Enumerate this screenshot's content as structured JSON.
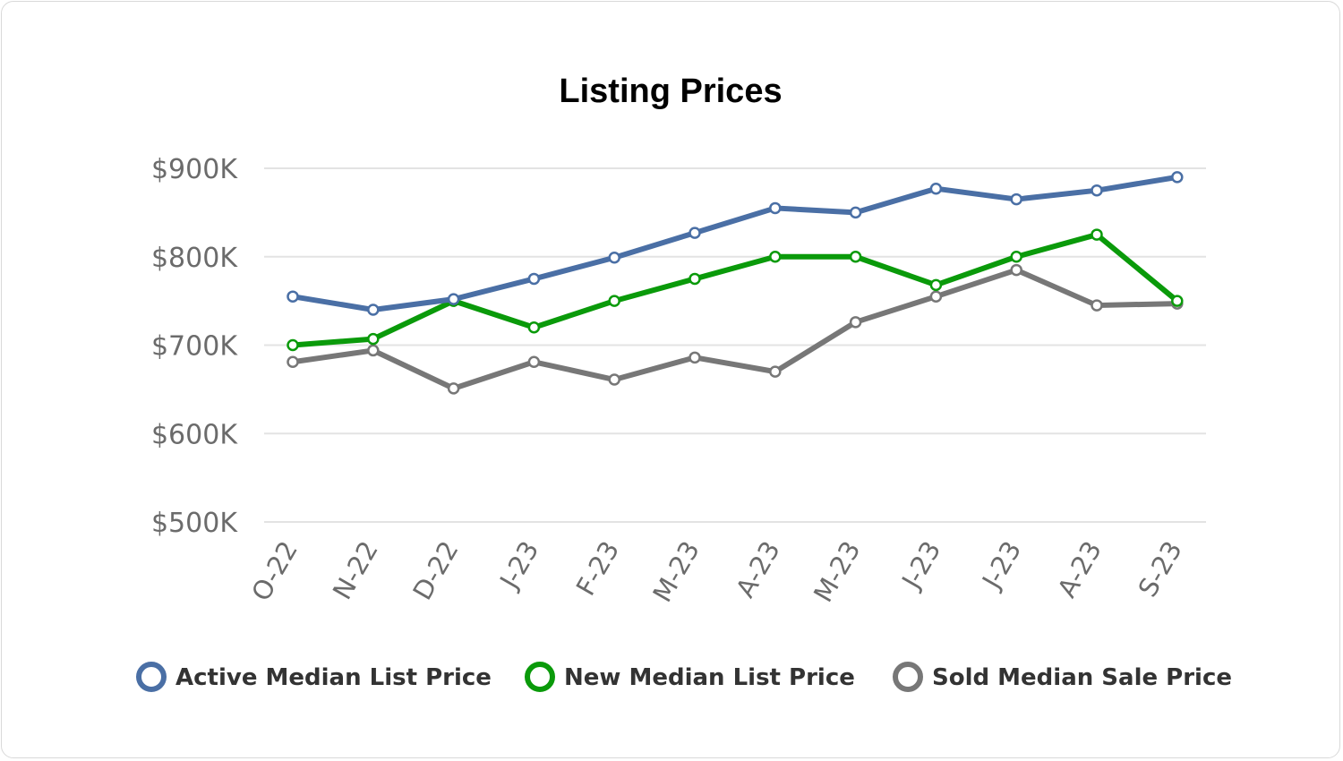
{
  "chart_data": {
    "type": "line",
    "title": "Listing Prices",
    "xlabel": "",
    "ylabel": "",
    "categories": [
      "O-22",
      "N-22",
      "D-22",
      "J-23",
      "F-23",
      "M-23",
      "A-23",
      "M-23",
      "J-23",
      "J-23",
      "A-23",
      "S-23"
    ],
    "ylim": [
      500000,
      900000
    ],
    "yticks": [
      {
        "value": 900000,
        "label": "$900K"
      },
      {
        "value": 800000,
        "label": "$800K"
      },
      {
        "value": 700000,
        "label": "$700K"
      },
      {
        "value": 600000,
        "label": "$600K"
      },
      {
        "value": 500000,
        "label": "$500K"
      }
    ],
    "grid": true,
    "legend_position": "bottom",
    "series": [
      {
        "name": "Active Median List Price",
        "color": "#4a6fa5",
        "values": [
          755000,
          740000,
          752000,
          775000,
          799000,
          827000,
          855000,
          850000,
          877000,
          865000,
          875000,
          890000
        ]
      },
      {
        "name": "New Median List Price",
        "color": "#0a9a0a",
        "values": [
          700000,
          707000,
          750000,
          720000,
          750000,
          775000,
          800000,
          800000,
          768000,
          800000,
          825000,
          750000
        ]
      },
      {
        "name": "Sold Median Sale Price",
        "color": "#777777",
        "values": [
          681000,
          694000,
          651000,
          681000,
          661000,
          686000,
          670000,
          726000,
          755000,
          785000,
          745000,
          747000
        ]
      }
    ]
  }
}
